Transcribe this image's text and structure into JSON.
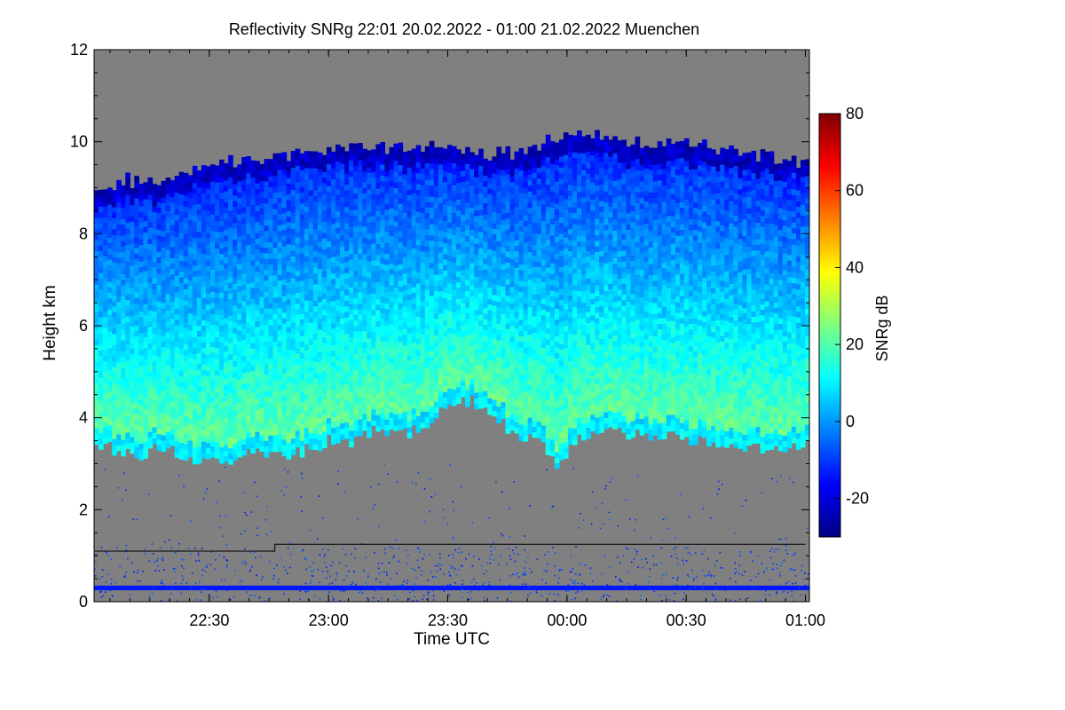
{
  "chart_data": {
    "type": "heatmap",
    "title": "Reflectivity SNRg   22:01 20.02.2022 - 01:00 21.02.2022 Muenchen",
    "xlabel": "Time UTC",
    "ylabel": "Height km",
    "colorbar_label": "SNRg dB",
    "x_ticks": [
      {
        "t": 22.5,
        "label": "22:30"
      },
      {
        "t": 23.0,
        "label": "23:00"
      },
      {
        "t": 23.5,
        "label": "23:30"
      },
      {
        "t": 24.0,
        "label": "00:00"
      },
      {
        "t": 24.5,
        "label": "00:30"
      },
      {
        "t": 25.0,
        "label": "01:00"
      }
    ],
    "xlim": [
      22.0167,
      25.0167
    ],
    "y_ticks": [
      0,
      2,
      4,
      6,
      8,
      10,
      12
    ],
    "ylim": [
      0,
      12
    ],
    "colorbar_ticks": [
      -20,
      0,
      20,
      40,
      60,
      80
    ],
    "colorbar_range": [
      -30,
      80
    ],
    "colormap": [
      "#00007f",
      "#0000ff",
      "#007fff",
      "#00ffff",
      "#7fff7f",
      "#ffff00",
      "#ff7f00",
      "#ff0000",
      "#7f0000"
    ],
    "background_color": "#808080",
    "cloud_top_km": [
      [
        22.02,
        8.8
      ],
      [
        22.15,
        9.1
      ],
      [
        22.3,
        9.0
      ],
      [
        22.45,
        9.4
      ],
      [
        22.6,
        9.5
      ],
      [
        22.75,
        9.6
      ],
      [
        22.9,
        9.7
      ],
      [
        23.05,
        9.8
      ],
      [
        23.2,
        9.8
      ],
      [
        23.35,
        9.8
      ],
      [
        23.5,
        9.9
      ],
      [
        23.65,
        9.7
      ],
      [
        23.8,
        9.7
      ],
      [
        23.95,
        10.0
      ],
      [
        24.1,
        10.1
      ],
      [
        24.25,
        9.9
      ],
      [
        24.4,
        9.9
      ],
      [
        24.55,
        9.9
      ],
      [
        24.7,
        9.7
      ],
      [
        24.85,
        9.6
      ],
      [
        25.0,
        9.5
      ]
    ],
    "cloud_base_km": [
      [
        22.02,
        3.5
      ],
      [
        22.1,
        3.3
      ],
      [
        22.2,
        3.2
      ],
      [
        22.3,
        3.4
      ],
      [
        22.4,
        3.2
      ],
      [
        22.5,
        3.0
      ],
      [
        22.6,
        3.0
      ],
      [
        22.7,
        3.3
      ],
      [
        22.8,
        3.2
      ],
      [
        22.9,
        3.3
      ],
      [
        23.0,
        3.5
      ],
      [
        23.1,
        3.5
      ],
      [
        23.2,
        3.8
      ],
      [
        23.3,
        3.6
      ],
      [
        23.4,
        3.8
      ],
      [
        23.5,
        4.3
      ],
      [
        23.6,
        4.4
      ],
      [
        23.7,
        4.0
      ],
      [
        23.8,
        3.6
      ],
      [
        23.9,
        3.4
      ],
      [
        23.95,
        3.0
      ],
      [
        24.05,
        3.5
      ],
      [
        24.15,
        3.8
      ],
      [
        24.3,
        3.6
      ],
      [
        24.45,
        3.6
      ],
      [
        24.6,
        3.5
      ],
      [
        24.75,
        3.4
      ],
      [
        24.85,
        3.3
      ],
      [
        25.0,
        3.4
      ]
    ],
    "ceilometer_line_km": [
      [
        22.02,
        1.1
      ],
      [
        22.775,
        1.1
      ],
      [
        22.775,
        1.25
      ],
      [
        25.0,
        1.25
      ]
    ],
    "near_surface_band_km": [
      0.25,
      0.35
    ]
  }
}
